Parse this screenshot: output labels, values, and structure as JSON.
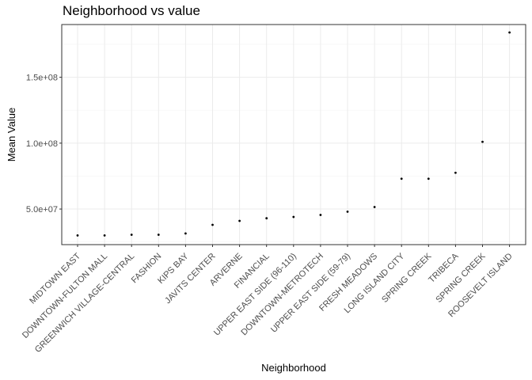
{
  "chart_data": {
    "type": "scatter",
    "title": "Neighborhood vs value",
    "xlabel": "Neighborhood",
    "ylabel": "Mean Value",
    "categories": [
      "MIDTOWN EAST",
      "DOWNTOWN-FULTON MALL",
      "GREENWICH VILLAGE-CENTRAL",
      "FASHION",
      "KIPS BAY",
      "JAVITS CENTER",
      "ARVERNE",
      "FINANCIAL",
      "UPPER EAST SIDE (96-110)",
      "DOWNTOWN-METROTECH",
      "UPPER EAST SIDE (59-79)",
      "FRESH MEADOWS",
      "LONG ISLAND CITY",
      "SPRING CREEK",
      "TRIBECA",
      "SPRING CREEK",
      "ROOSEVELT ISLAND"
    ],
    "values": [
      30000000,
      30000000,
      30500000,
      30500000,
      31500000,
      38000000,
      41000000,
      43000000,
      44000000,
      45500000,
      48000000,
      51500000,
      73000000,
      73000000,
      77500000,
      101000000,
      184000000
    ],
    "ylim": [
      23000000,
      190000000
    ],
    "yticks": [
      {
        "value": 50000000,
        "label": "5.0e+07"
      },
      {
        "value": 100000000,
        "label": "1.0e+08"
      },
      {
        "value": 150000000,
        "label": "1.5e+08"
      }
    ],
    "grid": true,
    "point_color": "#000000"
  }
}
